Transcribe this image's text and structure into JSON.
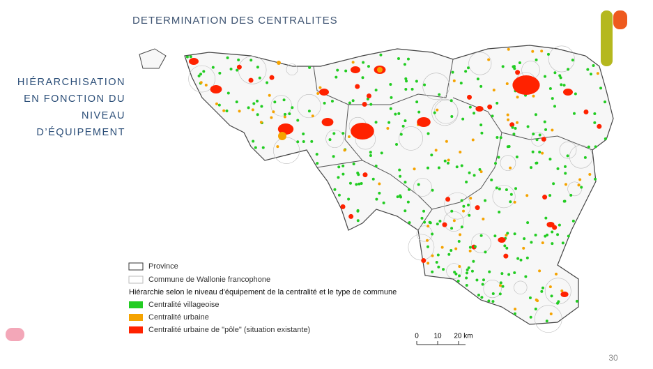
{
  "heading": [
    "HIÉRARCHISATION",
    "EN FONCTION DU",
    "NIVEAU",
    "D’ÉQUIPEMENT"
  ],
  "map": {
    "title": "DETERMINATION DES CENTRALITES",
    "legend": {
      "boundaries": [
        "Province",
        "Commune de Wallonie francophone"
      ],
      "subtitle": "Hiérarchie selon le niveau d'équipement de la centralité et le type de commune",
      "items": [
        {
          "label": "Centralité villageoise",
          "color": "#22cc22"
        },
        {
          "label": "Centralité urbaine",
          "color": "#f5a300"
        },
        {
          "label": "Centralité urbaine de \"pôle\" (situation existante)",
          "color": "#ff2200"
        }
      ]
    },
    "scale": [
      "0",
      "10",
      "20 km"
    ]
  },
  "page_number": "30"
}
